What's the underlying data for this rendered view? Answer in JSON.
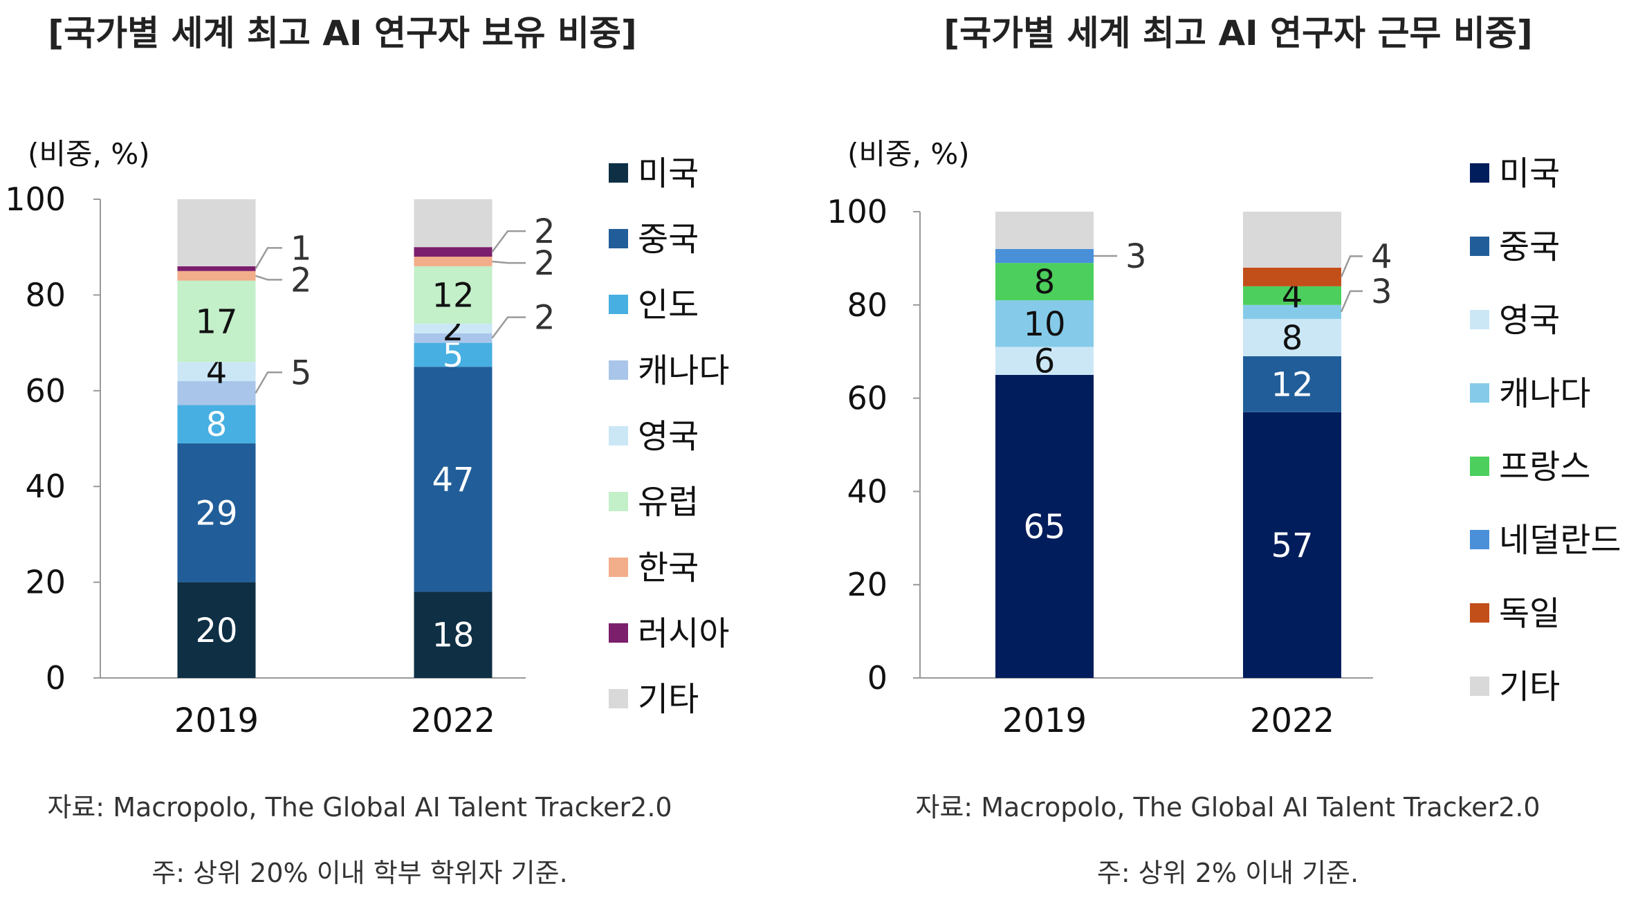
{
  "charts": [
    {
      "title": "[국가별 세계 최고 AI 연구자 보유 비중]",
      "unit_label": "(비중, %)",
      "source": "자료: Macropolo, The Global AI Talent Tracker2.0",
      "note": "주: 상위 20% 이내 학부 학위자 기준."
    },
    {
      "title": "[국가별 세계 최고 AI 연구자 근무 비중]",
      "unit_label": "(비중, %)",
      "source": "자료: Macropolo, The Global AI Talent Tracker2.0",
      "note": "주: 상위 2% 이내 기준."
    }
  ],
  "chart_data": [
    {
      "type": "bar",
      "stacked": true,
      "title": "[국가별 세계 최고 AI 연구자 보유 비중]",
      "ylabel": "(비중, %)",
      "ylim": [
        0,
        100
      ],
      "yticks": [
        "0",
        "20",
        "40",
        "60",
        "80",
        "100"
      ],
      "categories": [
        "2019",
        "2022"
      ],
      "legend_position": "right",
      "series": [
        {
          "name": "미국",
          "color": "#0e2f44",
          "values": [
            20,
            18
          ],
          "labels": [
            "20",
            "18"
          ],
          "label_color": "#ffffff"
        },
        {
          "name": "중국",
          "color": "#215e99",
          "values": [
            29,
            47
          ],
          "labels": [
            "29",
            "47"
          ],
          "label_color": "#ffffff"
        },
        {
          "name": "인도",
          "color": "#47afe1",
          "values": [
            8,
            5
          ],
          "labels": [
            "8",
            "5"
          ],
          "label_color": "#ffffff"
        },
        {
          "name": "캐나다",
          "color": "#a9c6ea",
          "values": [
            5,
            2
          ],
          "labels": [
            "",
            ""
          ],
          "label_color": "#111111"
        },
        {
          "name": "영국",
          "color": "#cbe7f6",
          "values": [
            4,
            2
          ],
          "labels": [
            "4",
            "2"
          ],
          "label_color": "#111111"
        },
        {
          "name": "유럽",
          "color": "#c3efc9",
          "values": [
            17,
            12
          ],
          "labels": [
            "17",
            "12"
          ],
          "label_color": "#111111"
        },
        {
          "name": "한국",
          "color": "#f2ad8a",
          "values": [
            2,
            2
          ],
          "labels": [
            "",
            ""
          ],
          "label_color": "#111111"
        },
        {
          "name": "러시아",
          "color": "#7b1f6d",
          "values": [
            1,
            2
          ],
          "labels": [
            "",
            ""
          ],
          "label_color": "#ffffff"
        },
        {
          "name": "기타",
          "color": "#d9d9d9",
          "values": [
            14,
            10
          ],
          "labels": [
            "",
            ""
          ],
          "label_color": "#111111"
        }
      ],
      "callouts": [
        {
          "category": "2019",
          "series": "러시아",
          "text": "1"
        },
        {
          "category": "2019",
          "series": "한국",
          "text": "2"
        },
        {
          "category": "2019",
          "series": "캐나다",
          "text": "5"
        },
        {
          "category": "2022",
          "series": "러시아",
          "text": "2"
        },
        {
          "category": "2022",
          "series": "한국",
          "text": "2"
        },
        {
          "category": "2022",
          "series": "캐나다",
          "text": "2"
        }
      ]
    },
    {
      "type": "bar",
      "stacked": true,
      "title": "[국가별 세계 최고 AI 연구자 근무 비중]",
      "ylabel": "(비중, %)",
      "ylim": [
        0,
        100
      ],
      "yticks": [
        "0",
        "20",
        "40",
        "60",
        "80",
        "100"
      ],
      "categories": [
        "2019",
        "2022"
      ],
      "legend_position": "right",
      "series": [
        {
          "name": "미국",
          "color": "#021d5c",
          "values": [
            65,
            57
          ],
          "labels": [
            "65",
            "57"
          ],
          "label_color": "#ffffff"
        },
        {
          "name": "중국",
          "color": "#215e99",
          "values": [
            0,
            12
          ],
          "labels": [
            "",
            "12"
          ],
          "label_color": "#ffffff"
        },
        {
          "name": "영국",
          "color": "#cbe7f6",
          "values": [
            6,
            8
          ],
          "labels": [
            "6",
            "8"
          ],
          "label_color": "#111111"
        },
        {
          "name": "캐나다",
          "color": "#85cbe9",
          "values": [
            10,
            3
          ],
          "labels": [
            "10",
            ""
          ],
          "label_color": "#111111"
        },
        {
          "name": "프랑스",
          "color": "#4ccf5c",
          "values": [
            8,
            4
          ],
          "labels": [
            "8",
            "4"
          ],
          "label_color": "#111111"
        },
        {
          "name": "네덜란드",
          "color": "#4a90d9",
          "values": [
            3,
            0
          ],
          "labels": [
            "",
            ""
          ],
          "label_color": "#ffffff"
        },
        {
          "name": "독일",
          "color": "#c24e1a",
          "values": [
            0,
            4
          ],
          "labels": [
            "",
            ""
          ],
          "label_color": "#ffffff"
        },
        {
          "name": "기타",
          "color": "#d9d9d9",
          "values": [
            8,
            12
          ],
          "labels": [
            "",
            ""
          ],
          "label_color": "#111111"
        }
      ],
      "callouts": [
        {
          "category": "2019",
          "series": "네덜란드",
          "text": "3"
        },
        {
          "category": "2022",
          "series": "독일",
          "text": "4"
        },
        {
          "category": "2022",
          "series": "캐나다",
          "text": "3"
        }
      ]
    }
  ]
}
